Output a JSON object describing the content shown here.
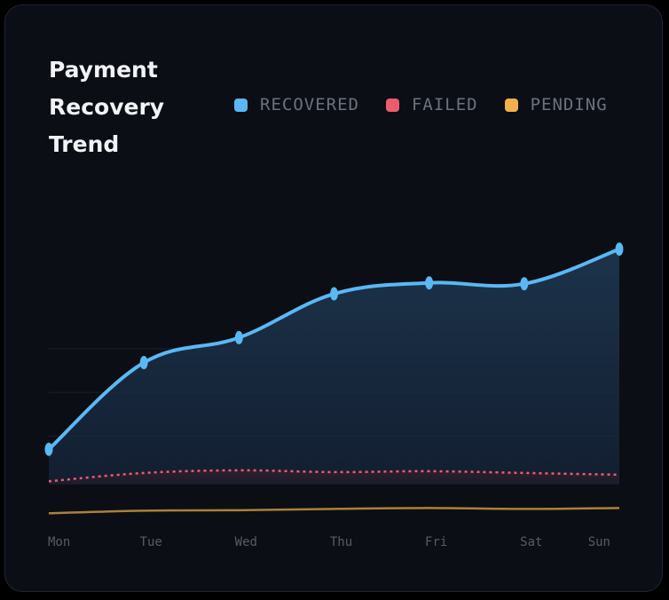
{
  "chart_data": {
    "type": "line",
    "title": "Payment Recovery Trend",
    "categories": [
      "Mon",
      "Tue",
      "Wed",
      "Thu",
      "Fri",
      "Sat",
      "Sun"
    ],
    "series": [
      {
        "name": "RECOVERED",
        "color": "#5ab8f5",
        "values": [
          120,
          318,
          375,
          475,
          500,
          498,
          577
        ]
      },
      {
        "name": "FAILED",
        "color": "#ec5c6e",
        "values": [
          47,
          66,
          72,
          68,
          70,
          66,
          62
        ]
      },
      {
        "name": "PENDING",
        "color": "#f0b04a",
        "values": [
          -26,
          -20,
          -19,
          -16,
          -14,
          -16,
          -14
        ]
      }
    ],
    "xlabel": "",
    "ylabel": "",
    "ylim": [
      -70,
      700
    ],
    "grid": true,
    "legend": "top-right",
    "colors": {
      "background": "#0b0e14",
      "grid": "#1a1f2b"
    }
  }
}
